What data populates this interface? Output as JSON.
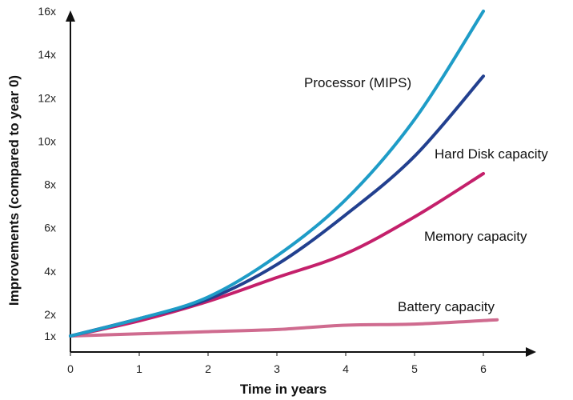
{
  "chart_data": {
    "type": "line",
    "title": "",
    "xlabel": "Time in years",
    "ylabel": "Improvements (compared to year 0)",
    "xlim": [
      0,
      6.6
    ],
    "ylim": [
      0,
      16
    ],
    "grid": false,
    "x_ticks": [
      {
        "value": 0,
        "label": "0"
      },
      {
        "value": 1,
        "label": "1"
      },
      {
        "value": 2,
        "label": "2"
      },
      {
        "value": 3,
        "label": "3"
      },
      {
        "value": 4,
        "label": "4"
      },
      {
        "value": 5,
        "label": "5"
      },
      {
        "value": 6,
        "label": "6"
      }
    ],
    "y_ticks": [
      {
        "value": 1,
        "label": "1x"
      },
      {
        "value": 2,
        "label": "2x"
      },
      {
        "value": 4,
        "label": "4x"
      },
      {
        "value": 6,
        "label": "6x"
      },
      {
        "value": 8,
        "label": "8x"
      },
      {
        "value": 10,
        "label": "10x"
      },
      {
        "value": 12,
        "label": "12x"
      },
      {
        "value": 14,
        "label": "14x"
      },
      {
        "value": 16,
        "label": "16x"
      }
    ],
    "series": [
      {
        "name": "Processor (MIPS)",
        "color": "#1e9cc7",
        "x": [
          0,
          1,
          2,
          3,
          4,
          5,
          6
        ],
        "values": [
          1.0,
          1.8,
          2.8,
          4.7,
          7.3,
          11.0,
          16.0
        ]
      },
      {
        "name": "Hard Disk capacity",
        "color": "#22408f",
        "x": [
          0,
          1,
          2,
          3,
          4,
          5,
          6
        ],
        "values": [
          1.0,
          1.8,
          2.7,
          4.3,
          6.6,
          9.3,
          13.0
        ]
      },
      {
        "name": "Memory capacity",
        "color": "#c4206b",
        "x": [
          0,
          1,
          2,
          3,
          4,
          5,
          6
        ],
        "values": [
          1.0,
          1.7,
          2.6,
          3.7,
          4.8,
          6.5,
          8.5
        ]
      },
      {
        "name": "Battery capacity",
        "color": "#cf6b8f",
        "x": [
          0,
          1,
          2,
          3,
          4,
          5,
          6.2
        ],
        "values": [
          1.0,
          1.1,
          1.2,
          1.3,
          1.5,
          1.55,
          1.75
        ]
      }
    ]
  }
}
